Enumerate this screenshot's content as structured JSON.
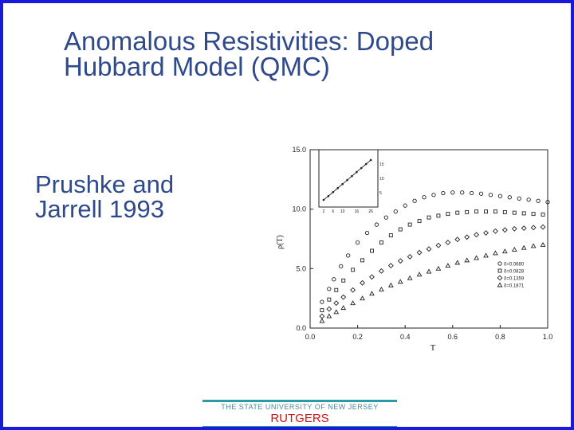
{
  "slide": {
    "title_line1": "Anomalous Resistivities: Doped",
    "title_line2": "Hubbard Model (QMC)",
    "subtitle_line1": "Prushke and",
    "subtitle_line2": "Jarrell 1993"
  },
  "footer": {
    "university": "THE STATE UNIVERSITY OF NEW JERSEY",
    "brand": "RUTGERS"
  },
  "colors": {
    "title": "#2f4a8c",
    "border": "#1a1adb",
    "footer_bar": "#2a9aa8",
    "brand": "#d01414"
  },
  "chart_data": {
    "type": "scatter",
    "xlabel": "T",
    "ylabel": "ρ(T)",
    "xlim": [
      0.0,
      1.0
    ],
    "ylim": [
      0.0,
      15.0
    ],
    "x_ticks": [
      "0.0",
      "0.2",
      "0.4",
      "0.6",
      "0.8",
      "1.0"
    ],
    "y_ticks": [
      "0.0",
      "5.0",
      "10.0",
      "15.0"
    ],
    "legend_position": "bottom-right",
    "series": [
      {
        "name": "δ=0.0680",
        "marker": "circle",
        "x": [
          0.05,
          0.08,
          0.1,
          0.13,
          0.16,
          0.2,
          0.24,
          0.28,
          0.32,
          0.36,
          0.4,
          0.44,
          0.48,
          0.52,
          0.56,
          0.6,
          0.64,
          0.68,
          0.72,
          0.76,
          0.8,
          0.84,
          0.88,
          0.92,
          0.96,
          1.0
        ],
        "y": [
          2.2,
          3.3,
          4.1,
          5.2,
          6.1,
          7.2,
          8.0,
          8.7,
          9.3,
          9.8,
          10.3,
          10.7,
          11.0,
          11.2,
          11.35,
          11.4,
          11.4,
          11.35,
          11.3,
          11.2,
          11.1,
          11.0,
          10.9,
          10.8,
          10.7,
          10.6
        ]
      },
      {
        "name": "δ=0.0828",
        "marker": "square",
        "x": [
          0.05,
          0.08,
          0.11,
          0.14,
          0.18,
          0.22,
          0.26,
          0.3,
          0.34,
          0.38,
          0.42,
          0.46,
          0.5,
          0.54,
          0.58,
          0.62,
          0.66,
          0.7,
          0.74,
          0.78,
          0.82,
          0.86,
          0.9,
          0.94,
          0.98
        ],
        "y": [
          1.5,
          2.4,
          3.2,
          4.0,
          4.9,
          5.7,
          6.5,
          7.2,
          7.8,
          8.3,
          8.7,
          9.0,
          9.3,
          9.45,
          9.6,
          9.7,
          9.75,
          9.8,
          9.8,
          9.8,
          9.75,
          9.7,
          9.65,
          9.6,
          9.55
        ]
      },
      {
        "name": "δ=0.1359",
        "marker": "diamond",
        "x": [
          0.05,
          0.08,
          0.11,
          0.14,
          0.18,
          0.22,
          0.26,
          0.3,
          0.34,
          0.38,
          0.42,
          0.46,
          0.5,
          0.54,
          0.58,
          0.62,
          0.66,
          0.7,
          0.74,
          0.78,
          0.82,
          0.86,
          0.9,
          0.94,
          0.98
        ],
        "y": [
          1.0,
          1.6,
          2.1,
          2.6,
          3.2,
          3.8,
          4.3,
          4.8,
          5.25,
          5.65,
          6.0,
          6.35,
          6.65,
          6.95,
          7.2,
          7.45,
          7.65,
          7.85,
          8.0,
          8.15,
          8.25,
          8.35,
          8.4,
          8.45,
          8.5
        ]
      },
      {
        "name": "δ=0.1871",
        "marker": "triangle",
        "x": [
          0.05,
          0.08,
          0.11,
          0.14,
          0.18,
          0.22,
          0.26,
          0.3,
          0.34,
          0.38,
          0.42,
          0.46,
          0.5,
          0.54,
          0.58,
          0.62,
          0.66,
          0.7,
          0.74,
          0.78,
          0.82,
          0.86,
          0.9,
          0.94,
          0.98
        ],
        "y": [
          0.6,
          1.0,
          1.35,
          1.7,
          2.1,
          2.5,
          2.9,
          3.25,
          3.6,
          3.9,
          4.2,
          4.5,
          4.75,
          5.0,
          5.25,
          5.5,
          5.7,
          5.9,
          6.1,
          6.3,
          6.45,
          6.6,
          6.75,
          6.9,
          7.0
        ]
      }
    ],
    "inset": {
      "xlim": [
        0,
        25
      ],
      "ylim": [
        0,
        20
      ],
      "x_ticks": [
        "2",
        "6",
        "10",
        "16",
        "26"
      ],
      "y_ticks": [
        "5",
        "10",
        "15"
      ],
      "x": [
        2,
        4,
        6,
        8,
        10,
        12,
        14,
        16,
        18,
        20,
        22
      ],
      "y": [
        2.5,
        3.8,
        5.2,
        6.6,
        8.0,
        9.4,
        10.8,
        12.2,
        13.6,
        15.0,
        16.4
      ]
    }
  }
}
